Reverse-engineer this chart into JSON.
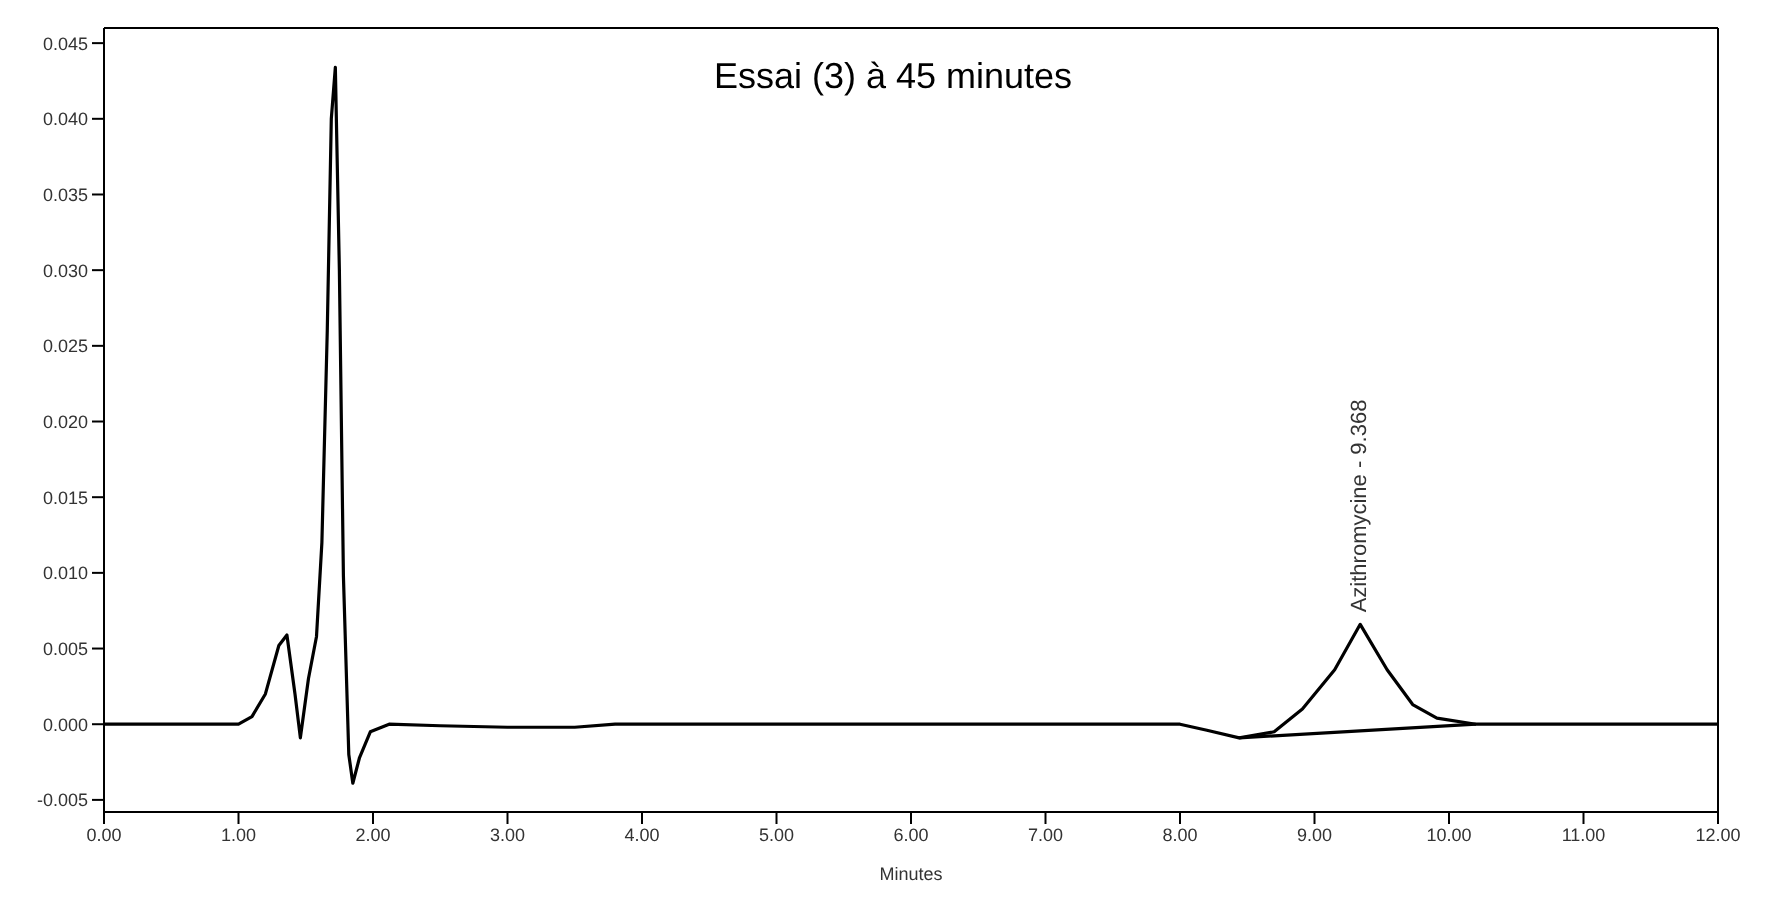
{
  "chart_data": {
    "type": "line",
    "title": "Essai (3) à 45 minutes",
    "xlabel": "Minutes",
    "series": [
      {
        "color": "#000000",
        "x": [
          0,
          0.5,
          1.0,
          1.1,
          1.2,
          1.3,
          1.36,
          1.42,
          1.46,
          1.52,
          1.58,
          1.62,
          1.66,
          1.69,
          1.72,
          1.75,
          1.78,
          1.82,
          1.85,
          1.9,
          1.98,
          2.12,
          2.5,
          3.0,
          3.5,
          3.8,
          4.5,
          6.0,
          7.0,
          8.0,
          8.2,
          8.44,
          8.7,
          8.91,
          9.15,
          9.34,
          9.54,
          9.73,
          9.91,
          10.2,
          11.0,
          12.0
        ],
        "values": [
          0,
          0,
          0,
          0.0005,
          0.002,
          0.0052,
          0.0059,
          0.002,
          -0.0009,
          0.003,
          0.0058,
          0.012,
          0.026,
          0.04,
          0.0434,
          0.03,
          0.0098,
          -0.002,
          -0.0039,
          -0.0022,
          -0.0005,
          0,
          -0.0001,
          -0.0002,
          -0.0002,
          0,
          0,
          0,
          0,
          0,
          -0.0004,
          -0.0009,
          -0.0005,
          0.001,
          0.0036,
          0.0066,
          0.0036,
          0.0013,
          0.0004,
          0,
          0,
          0
        ]
      },
      {
        "color": "#000000",
        "x": [
          8.44,
          10.2
        ],
        "values": [
          -0.0009,
          0
        ]
      }
    ],
    "xlim": [
      0,
      12
    ],
    "xticks": [
      {
        "value": 0,
        "label": "0.00"
      },
      {
        "value": 1,
        "label": "1.00"
      },
      {
        "value": 2,
        "label": "2.00"
      },
      {
        "value": 3,
        "label": "3.00"
      },
      {
        "value": 4,
        "label": "4.00"
      },
      {
        "value": 5,
        "label": "5.00"
      },
      {
        "value": 6,
        "label": "6.00"
      },
      {
        "value": 7,
        "label": "7.00"
      },
      {
        "value": 8,
        "label": "8.00"
      },
      {
        "value": 9,
        "label": "9.00"
      },
      {
        "value": 10,
        "label": "10.00"
      },
      {
        "value": 11,
        "label": "11.00"
      },
      {
        "value": 12,
        "label": "12.00"
      }
    ],
    "ylim": [
      -0.0058,
      0.046
    ],
    "yticks": [
      {
        "value": -0.005,
        "label": "-0.005"
      },
      {
        "value": 0,
        "label": "0.000"
      },
      {
        "value": 0.005,
        "label": "0.005"
      },
      {
        "value": 0.01,
        "label": "0.010"
      },
      {
        "value": 0.015,
        "label": "0.015"
      },
      {
        "value": 0.02,
        "label": "0.020"
      },
      {
        "value": 0.025,
        "label": "0.025"
      },
      {
        "value": 0.03,
        "label": "0.030"
      },
      {
        "value": 0.035,
        "label": "0.035"
      },
      {
        "value": 0.04,
        "label": "0.040"
      },
      {
        "value": 0.045,
        "label": "0.045"
      }
    ],
    "annotations": [
      {
        "text": "Azithromycine - 9.368",
        "x": 9.34,
        "y": 0.0066
      }
    ],
    "marker": "none"
  }
}
